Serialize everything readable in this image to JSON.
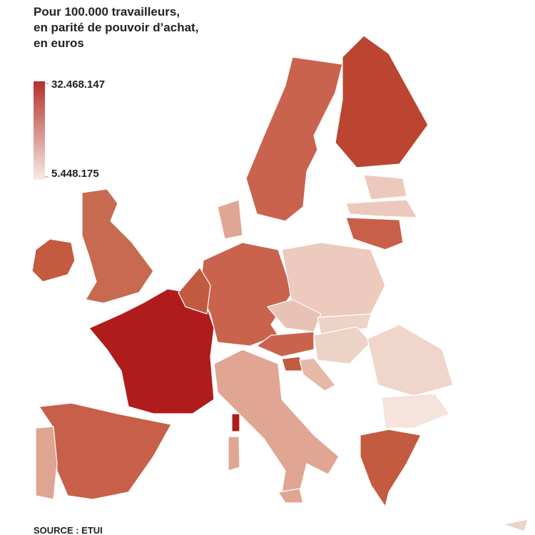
{
  "header": {
    "title_lines": [
      "Pour 100.000 travailleurs,",
      "en parité de pouvoir d’achat,",
      "en euros"
    ]
  },
  "legend": {
    "max": {
      "value": 32468147,
      "label": "32.468.147"
    },
    "min": {
      "value": 5448175,
      "label": "5.448.175"
    },
    "colors": [
      "#b5302a",
      "#f8ebe6"
    ]
  },
  "footer": {
    "source": "SOURCE : ETUI"
  }
}
